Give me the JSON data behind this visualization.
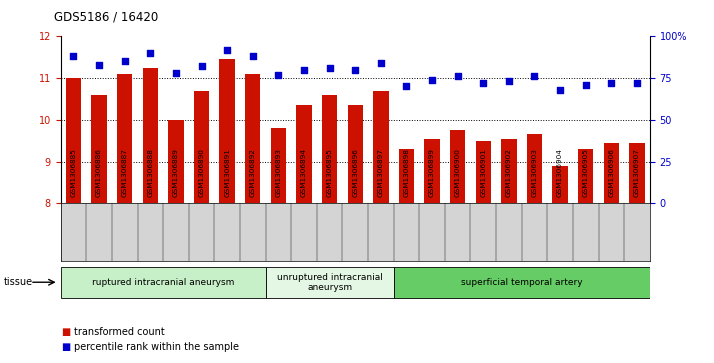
{
  "title": "GDS5186 / 16420",
  "samples": [
    "GSM1306885",
    "GSM1306886",
    "GSM1306887",
    "GSM1306888",
    "GSM1306889",
    "GSM1306890",
    "GSM1306891",
    "GSM1306892",
    "GSM1306893",
    "GSM1306894",
    "GSM1306895",
    "GSM1306896",
    "GSM1306897",
    "GSM1306898",
    "GSM1306899",
    "GSM1306900",
    "GSM1306901",
    "GSM1306902",
    "GSM1306903",
    "GSM1306904",
    "GSM1306905",
    "GSM1306906",
    "GSM1306907"
  ],
  "transformed_count": [
    11.0,
    10.6,
    11.1,
    11.25,
    10.0,
    10.7,
    11.45,
    11.1,
    9.8,
    10.35,
    10.6,
    10.35,
    10.7,
    9.3,
    9.55,
    9.75,
    9.5,
    9.55,
    9.65,
    8.9,
    9.3,
    9.45,
    9.45
  ],
  "percentile_rank": [
    88,
    83,
    85,
    90,
    78,
    82,
    92,
    88,
    77,
    80,
    81,
    80,
    84,
    70,
    74,
    76,
    72,
    73,
    76,
    68,
    71,
    72,
    72
  ],
  "groups": [
    {
      "label": "ruptured intracranial aneurysm",
      "start": 0,
      "end": 8,
      "color": "#c8f0c8"
    },
    {
      "label": "unruptured intracranial\naneurysm",
      "start": 8,
      "end": 13,
      "color": "#e4f7e4"
    },
    {
      "label": "superficial temporal artery",
      "start": 13,
      "end": 23,
      "color": "#66cc66"
    }
  ],
  "ylim_left": [
    8,
    12
  ],
  "ylim_right": [
    0,
    100
  ],
  "yticks_left": [
    8,
    9,
    10,
    11,
    12
  ],
  "yticks_right": [
    0,
    25,
    50,
    75,
    100
  ],
  "bar_color": "#cc1100",
  "dot_color": "#0000cc",
  "grid_color": "#000000",
  "plot_bg_color": "#ffffff",
  "tick_bg_color": "#d4d4d4",
  "tissue_label": "tissue",
  "legend_bar": "transformed count",
  "legend_dot": "percentile rank within the sample"
}
